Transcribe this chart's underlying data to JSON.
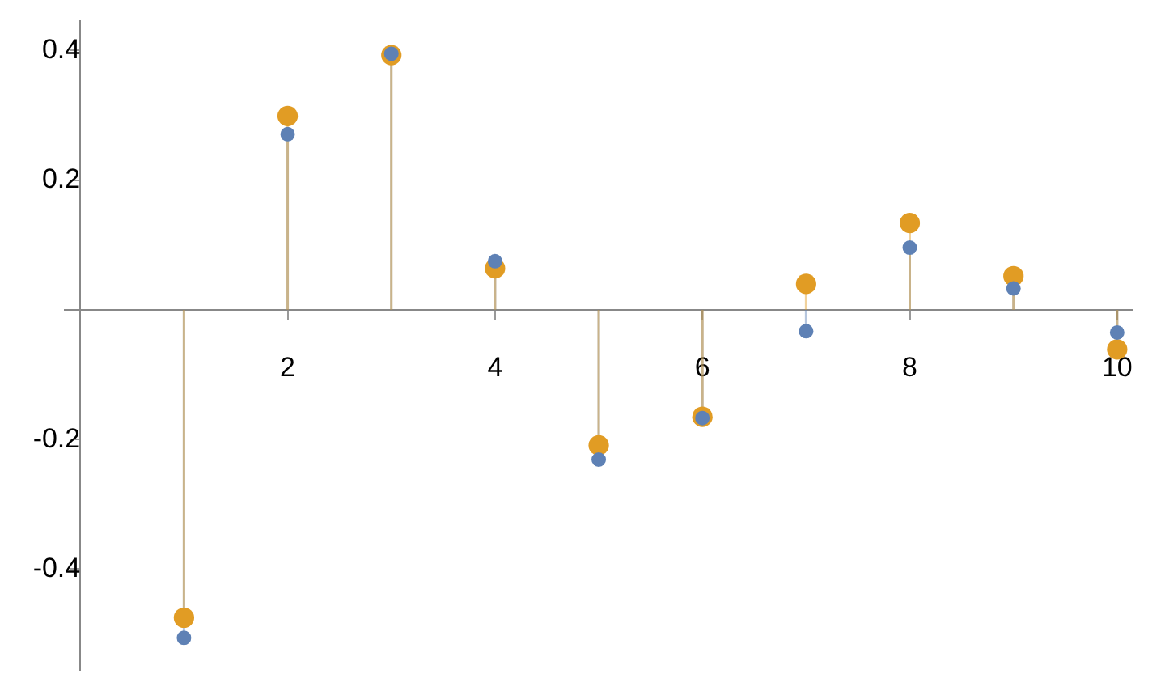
{
  "chart_data": {
    "type": "lollipop",
    "x": [
      1,
      2,
      3,
      4,
      5,
      6,
      7,
      8,
      9,
      10
    ],
    "series": [
      {
        "color": "#5e81b5",
        "values": [
          -0.506,
          0.271,
          0.395,
          0.075,
          -0.231,
          -0.167,
          -0.033,
          0.096,
          0.033,
          -0.035
        ]
      },
      {
        "color": "#e19c24",
        "values": [
          -0.475,
          0.299,
          0.393,
          0.064,
          -0.209,
          -0.165,
          0.04,
          0.134,
          0.052,
          -0.061
        ]
      }
    ],
    "xlim": [
      -0.15,
      10.15
    ],
    "xticks": [
      2,
      4,
      6,
      8,
      10
    ],
    "ylim": [
      -0.555,
      0.445
    ],
    "yticks": [
      -0.4,
      -0.2,
      0.2,
      0.4
    ],
    "grid": false,
    "legend": false,
    "marker": "circle"
  }
}
